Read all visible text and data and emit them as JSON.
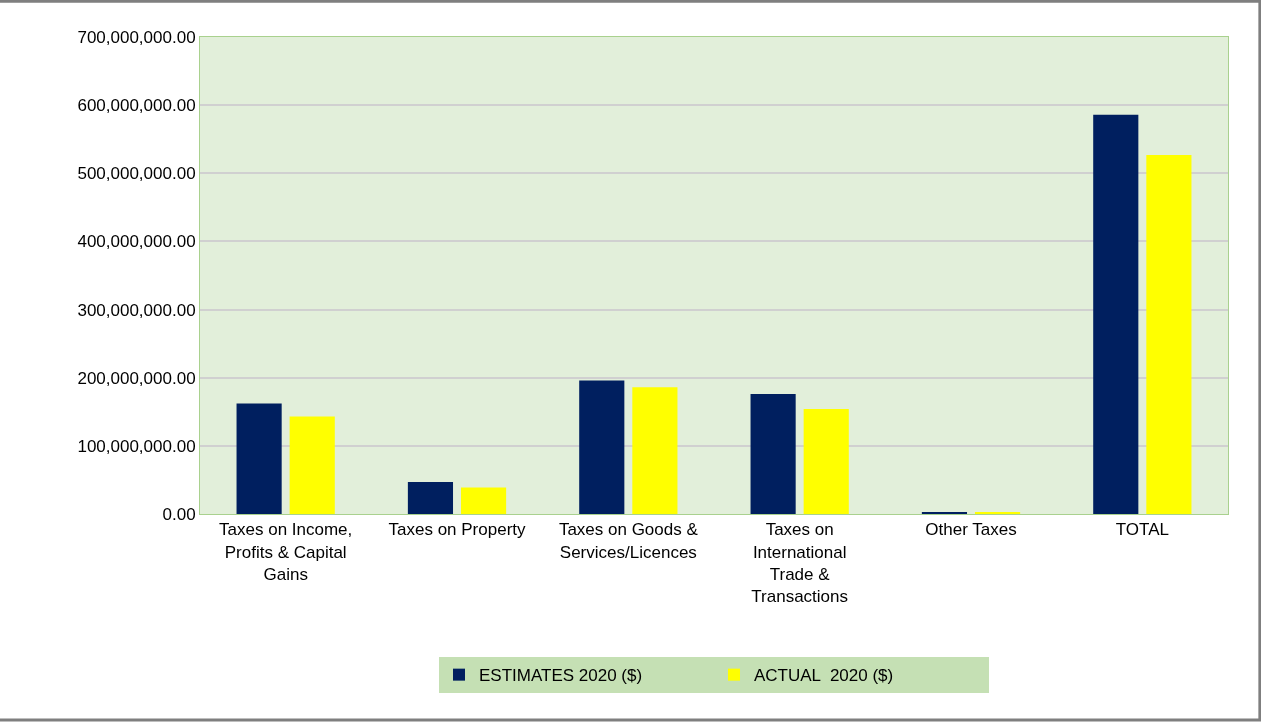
{
  "chart_data": {
    "type": "bar",
    "categories": [
      "Taxes on Income, Profits & Capital Gains",
      "Taxes on Property",
      "Taxes on Goods & Services/Licences",
      "Taxes on International Trade & Transactions",
      "Other Taxes",
      "TOTAL"
    ],
    "series": [
      {
        "name": "ESTIMATES 2020 ($)",
        "color": "#001f5f",
        "values": [
          162000000,
          47000000,
          196000000,
          176000000,
          3000000,
          586000000
        ]
      },
      {
        "name": "ACTUAL  2020 ($)",
        "color": "#ffff00",
        "values": [
          143000000,
          39000000,
          186000000,
          154000000,
          2000000,
          527000000
        ]
      }
    ],
    "ylim": [
      0,
      700000000
    ],
    "yticks": [
      {
        "value": 0,
        "label": "0.00"
      },
      {
        "value": 100000000,
        "label": "100,000,000.00"
      },
      {
        "value": 200000000,
        "label": "200,000,000.00"
      },
      {
        "value": 300000000,
        "label": "300,000,000.00"
      },
      {
        "value": 400000000,
        "label": "400,000,000.00"
      },
      {
        "value": 500000000,
        "label": "500,000,000.00"
      },
      {
        "value": 600000000,
        "label": "600,000,000.00"
      },
      {
        "value": 700000000,
        "label": "700,000,000.00"
      }
    ],
    "grid": "y",
    "legend": "bottom"
  }
}
